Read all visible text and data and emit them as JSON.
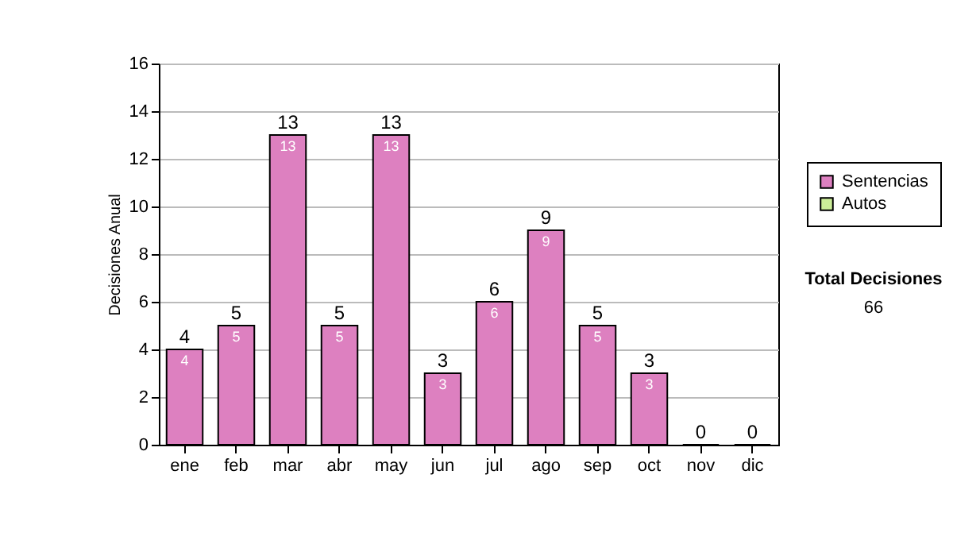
{
  "chart_data": {
    "type": "bar",
    "ylabel": "Decisiones Anual",
    "categories": [
      "ene",
      "feb",
      "mar",
      "abr",
      "may",
      "jun",
      "jul",
      "ago",
      "sep",
      "oct",
      "nov",
      "dic"
    ],
    "series": [
      {
        "name": "Sentencias",
        "color": "#dd80c0",
        "values": [
          4,
          5,
          13,
          5,
          13,
          3,
          6,
          9,
          5,
          3,
          0,
          0
        ],
        "value_labels": [
          "4",
          "5",
          "13",
          "5",
          "13",
          "3",
          "6",
          "9",
          "5",
          "3",
          null,
          null
        ]
      },
      {
        "name": "Autos",
        "color": "#ccee99",
        "values": [
          null,
          null,
          null,
          null,
          null,
          null,
          null,
          null,
          null,
          null,
          null,
          null
        ]
      }
    ],
    "totals": [
      "4",
      "5",
      "13",
      "5",
      "13",
      "3",
      "6",
      "9",
      "5",
      "3",
      "0",
      "0"
    ],
    "ylim": [
      0,
      16
    ],
    "yticks": [
      0,
      2,
      4,
      6,
      8,
      10,
      12,
      14,
      16
    ],
    "grid": true,
    "legend": "right",
    "annotations": [
      "Total Decisiones",
      "66"
    ]
  }
}
